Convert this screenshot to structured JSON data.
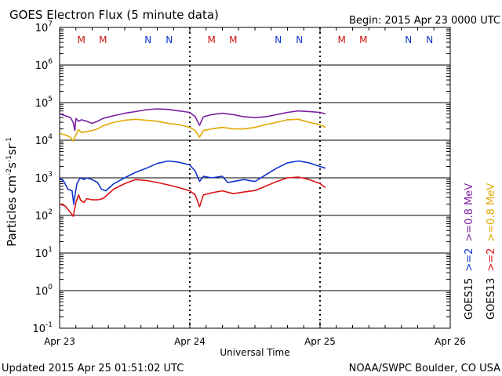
{
  "header": {
    "title": "GOES Electron Flux (5 minute data)",
    "begin": "Begin: 2015 Apr 23 0000 UTC"
  },
  "footer": {
    "updated": "Updated 2015 Apr 25 01:51:02 UTC",
    "credit": "NOAA/SWPC Boulder, CO USA"
  },
  "colors": {
    "goes15_ge08": "#7b1fa2",
    "goes13_ge08": "#e0a800",
    "goes15_ge2": "#1133cc",
    "goes13_ge2": "#dd1111",
    "marker_m": "#cc1111",
    "marker_n": "#1133cc"
  },
  "chart_data": {
    "type": "line",
    "yscale": "log",
    "ylim": [
      0.1,
      10000000
    ],
    "xlim": [
      0,
      72
    ],
    "xlabel": "Universal Time",
    "ylabel_base": "Particles cm",
    "ylabel_sup1": "-2",
    "ylabel_mid": "s",
    "ylabel_sup2": "-1",
    "ylabel_sr": "sr",
    "ylabel_sup3": "-1",
    "x_ticks": [
      {
        "x": 0,
        "label": "Apr 23"
      },
      {
        "x": 24,
        "label": "Apr 24"
      },
      {
        "x": 48,
        "label": "Apr 25"
      },
      {
        "x": 72,
        "label": "Apr 26"
      }
    ],
    "y_ticks": [
      {
        "base": "10",
        "exp": "7",
        "value": 10000000
      },
      {
        "base": "10",
        "exp": "6",
        "value": 1000000
      },
      {
        "base": "10",
        "exp": "5",
        "value": 100000
      },
      {
        "base": "10",
        "exp": "4",
        "value": 10000
      },
      {
        "base": "10",
        "exp": "3",
        "value": 1000
      },
      {
        "base": "10",
        "exp": "2",
        "value": 100
      },
      {
        "base": "10",
        "exp": "1",
        "value": 10
      },
      {
        "base": "10",
        "exp": "0",
        "value": 1
      },
      {
        "base": "10",
        "exp": "-1",
        "value": 0.1
      }
    ],
    "threshold": 1000,
    "day_boundaries": [
      24,
      48
    ],
    "markers": [
      {
        "x": 4,
        "label": "M",
        "kind": "m"
      },
      {
        "x": 8,
        "label": "M",
        "kind": "m"
      },
      {
        "x": 16.3,
        "label": "N",
        "kind": "n"
      },
      {
        "x": 20.2,
        "label": "N",
        "kind": "n"
      },
      {
        "x": 28,
        "label": "M",
        "kind": "m"
      },
      {
        "x": 32,
        "label": "M",
        "kind": "m"
      },
      {
        "x": 40.3,
        "label": "N",
        "kind": "n"
      },
      {
        "x": 44.2,
        "label": "N",
        "kind": "n"
      },
      {
        "x": 52,
        "label": "M",
        "kind": "m"
      },
      {
        "x": 56,
        "label": "M",
        "kind": "m"
      },
      {
        "x": 64.3,
        "label": "N",
        "kind": "n"
      },
      {
        "x": 68.2,
        "label": "N",
        "kind": "n"
      }
    ],
    "legend": {
      "col1_prefix": "GOES15",
      "col1_energy1": ">=2",
      "col1_energy2": ">=0.8 MeV",
      "col2_prefix": "GOES13",
      "col2_energy1": ">=2",
      "col2_energy2": ">=0.8 MeV"
    },
    "series": [
      {
        "name": "GOES15 >=0.8 MeV",
        "color_key": "goes15_ge08",
        "points": [
          [
            0,
            50000
          ],
          [
            1,
            45000
          ],
          [
            2,
            40000
          ],
          [
            2.5,
            30000
          ],
          [
            2.8,
            18000
          ],
          [
            3,
            38000
          ],
          [
            3.5,
            32000
          ],
          [
            4,
            35000
          ],
          [
            5,
            32000
          ],
          [
            6,
            28000
          ],
          [
            7,
            32000
          ],
          [
            8,
            38000
          ],
          [
            10,
            45000
          ],
          [
            12,
            52000
          ],
          [
            14,
            58000
          ],
          [
            16,
            65000
          ],
          [
            18,
            68000
          ],
          [
            20,
            66000
          ],
          [
            22,
            60000
          ],
          [
            24,
            55000
          ],
          [
            25,
            42000
          ],
          [
            25.8,
            25000
          ],
          [
            26.5,
            42000
          ],
          [
            28,
            48000
          ],
          [
            30,
            52000
          ],
          [
            32,
            48000
          ],
          [
            34,
            42000
          ],
          [
            36,
            40000
          ],
          [
            38,
            42000
          ],
          [
            40,
            48000
          ],
          [
            42,
            55000
          ],
          [
            44,
            60000
          ],
          [
            46,
            58000
          ],
          [
            48,
            55000
          ],
          [
            49,
            50000
          ]
        ]
      },
      {
        "name": "GOES13 >=0.8 MeV",
        "color_key": "goes13_ge08",
        "points": [
          [
            0,
            15000
          ],
          [
            1,
            14000
          ],
          [
            2,
            12000
          ],
          [
            2.5,
            9500
          ],
          [
            3,
            14000
          ],
          [
            3.5,
            19000
          ],
          [
            4,
            16000
          ],
          [
            5,
            17000
          ],
          [
            6,
            18000
          ],
          [
            7,
            20000
          ],
          [
            8,
            24000
          ],
          [
            10,
            30000
          ],
          [
            12,
            34000
          ],
          [
            14,
            36000
          ],
          [
            16,
            34000
          ],
          [
            18,
            32000
          ],
          [
            20,
            28000
          ],
          [
            22,
            26000
          ],
          [
            24,
            22000
          ],
          [
            25,
            18000
          ],
          [
            25.8,
            12000
          ],
          [
            26.5,
            18000
          ],
          [
            28,
            20000
          ],
          [
            30,
            22000
          ],
          [
            32,
            20000
          ],
          [
            34,
            20000
          ],
          [
            36,
            22000
          ],
          [
            38,
            26000
          ],
          [
            40,
            30000
          ],
          [
            42,
            35000
          ],
          [
            44,
            36000
          ],
          [
            46,
            30000
          ],
          [
            48,
            26000
          ],
          [
            49,
            22000
          ]
        ]
      },
      {
        "name": "GOES15 >=2 MeV",
        "color_key": "goes15_ge2",
        "points": [
          [
            0,
            1000
          ],
          [
            0.8,
            800
          ],
          [
            1.5,
            500
          ],
          [
            2.3,
            450
          ],
          [
            2.6,
            200
          ],
          [
            2.9,
            400
          ],
          [
            3.2,
            700
          ],
          [
            3.8,
            1000
          ],
          [
            4.5,
            900
          ],
          [
            5,
            1000
          ],
          [
            6,
            900
          ],
          [
            7,
            750
          ],
          [
            7.7,
            500
          ],
          [
            8.5,
            450
          ],
          [
            10,
            700
          ],
          [
            12,
            1000
          ],
          [
            14,
            1400
          ],
          [
            16,
            1800
          ],
          [
            18,
            2400
          ],
          [
            20,
            2800
          ],
          [
            22,
            2600
          ],
          [
            24,
            2200
          ],
          [
            25,
            1500
          ],
          [
            25.8,
            800
          ],
          [
            26.5,
            1100
          ],
          [
            28,
            1000
          ],
          [
            30,
            1100
          ],
          [
            31,
            750
          ],
          [
            32,
            800
          ],
          [
            34,
            900
          ],
          [
            36,
            800
          ],
          [
            38,
            1200
          ],
          [
            40,
            1800
          ],
          [
            42,
            2500
          ],
          [
            44,
            2800
          ],
          [
            46,
            2500
          ],
          [
            48,
            2000
          ],
          [
            49,
            1800
          ]
        ]
      },
      {
        "name": "GOES13 >=2 MeV",
        "color_key": "goes13_ge2",
        "points": [
          [
            0,
            200
          ],
          [
            1,
            180
          ],
          [
            2,
            120
          ],
          [
            2.5,
            95
          ],
          [
            3,
            220
          ],
          [
            3.5,
            350
          ],
          [
            3.9,
            250
          ],
          [
            4.5,
            220
          ],
          [
            5,
            280
          ],
          [
            6,
            260
          ],
          [
            7,
            260
          ],
          [
            8,
            280
          ],
          [
            10,
            500
          ],
          [
            12,
            700
          ],
          [
            14,
            900
          ],
          [
            16,
            850
          ],
          [
            18,
            750
          ],
          [
            20,
            650
          ],
          [
            22,
            550
          ],
          [
            24,
            450
          ],
          [
            25,
            350
          ],
          [
            25.8,
            170
          ],
          [
            26.5,
            350
          ],
          [
            28,
            400
          ],
          [
            30,
            450
          ],
          [
            32,
            380
          ],
          [
            34,
            420
          ],
          [
            36,
            460
          ],
          [
            38,
            600
          ],
          [
            40,
            800
          ],
          [
            42,
            1000
          ],
          [
            44,
            1050
          ],
          [
            46,
            900
          ],
          [
            48,
            700
          ],
          [
            49,
            550
          ]
        ]
      }
    ]
  }
}
